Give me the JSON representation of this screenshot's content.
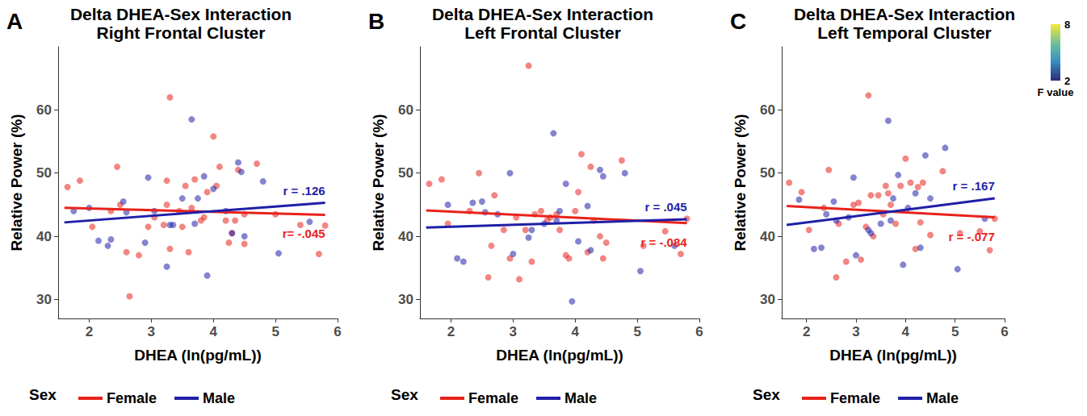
{
  "chart_data": [
    {
      "type": "scatter",
      "panel": "A",
      "title": "Delta DHEA-Sex Interaction",
      "subtitle": "Right Frontal Cluster",
      "x_label": "DHEA (ln(pg/mL))",
      "y_label": "Relative Power (%)",
      "xlim": [
        1.5,
        6
      ],
      "xticks": [
        2,
        3,
        4,
        5,
        6
      ],
      "ylim": [
        27,
        70
      ],
      "yticks": [
        30,
        40,
        50,
        60
      ],
      "grid": false,
      "legend": "bottom",
      "legend_title": "Sex",
      "series": [
        {
          "name": "Female",
          "color": "#e8221b",
          "marker": "circle",
          "x": [
            1.65,
            1.85,
            2.05,
            2.35,
            2.45,
            2.5,
            2.6,
            2.65,
            2.8,
            2.95,
            3.05,
            3.2,
            3.25,
            3.25,
            3.3,
            3.3,
            3.45,
            3.5,
            3.55,
            3.6,
            3.65,
            3.7,
            3.8,
            3.85,
            3.9,
            4.0,
            4.05,
            4.1,
            4.2,
            4.25,
            4.3,
            4.35,
            4.4,
            4.5,
            4.5,
            4.7,
            5.0,
            5.4,
            5.7,
            5.8
          ],
          "values": [
            47.8,
            48.8,
            41.5,
            44,
            51,
            45,
            37.5,
            30.5,
            37,
            41.5,
            43,
            41.8,
            45,
            48.8,
            62,
            38,
            44,
            41.5,
            48,
            37.5,
            44.5,
            49,
            42.5,
            43,
            47,
            55.8,
            48,
            51,
            42.5,
            39,
            40.5,
            42.5,
            50.5,
            38.8,
            43.5,
            51.5,
            43.5,
            41.8,
            37.2,
            41.7
          ],
          "fit": {
            "x": [
              1.6,
              5.8
            ],
            "y": [
              44.5,
              43.4
            ]
          },
          "r_label": "r= -.045"
        },
        {
          "name": "Male",
          "color": "#1f1fa8",
          "marker": "circle",
          "x": [
            1.75,
            2.0,
            2.15,
            2.3,
            2.35,
            2.55,
            2.6,
            2.9,
            2.95,
            3.05,
            3.25,
            3.3,
            3.35,
            3.5,
            3.65,
            3.7,
            3.75,
            3.85,
            3.9,
            4.0,
            4.2,
            4.3,
            4.4,
            4.45,
            4.5,
            4.8,
            5.05,
            5.55
          ],
          "values": [
            44,
            44.5,
            39.3,
            38.5,
            39.5,
            45.5,
            43.8,
            39,
            49.3,
            44,
            35.2,
            41.8,
            41.8,
            46,
            58.5,
            42,
            46,
            49.5,
            33.8,
            47.5,
            44,
            40.5,
            51.7,
            50.2,
            40,
            48.7,
            37.3,
            42.3
          ],
          "fit": {
            "x": [
              1.6,
              5.8
            ],
            "y": [
              42.2,
              45.3
            ]
          },
          "r_label": "r = .126"
        }
      ]
    },
    {
      "type": "scatter",
      "panel": "B",
      "title": "Delta DHEA-Sex Interaction",
      "subtitle": "Left Frontal Cluster",
      "x_label": "DHEA (ln(pg/mL))",
      "y_label": "Relative Power (%)",
      "xlim": [
        1.5,
        6
      ],
      "xticks": [
        2,
        3,
        4,
        5,
        6
      ],
      "ylim": [
        27,
        70
      ],
      "yticks": [
        30,
        40,
        50,
        60
      ],
      "grid": false,
      "legend": "bottom",
      "legend_title": "Sex",
      "series": [
        {
          "name": "Female",
          "color": "#e8221b",
          "marker": "circle",
          "x": [
            1.65,
            1.85,
            1.95,
            2.3,
            2.45,
            2.6,
            2.65,
            2.7,
            2.85,
            2.95,
            3.05,
            3.1,
            3.2,
            3.25,
            3.3,
            3.35,
            3.45,
            3.55,
            3.6,
            3.7,
            3.75,
            3.85,
            3.9,
            4.0,
            4.05,
            4.1,
            4.2,
            4.25,
            4.3,
            4.4,
            4.45,
            4.5,
            4.75,
            5.1,
            5.45,
            5.7,
            5.8
          ],
          "values": [
            48.3,
            49,
            42,
            44,
            50,
            33.5,
            38.5,
            46.5,
            41,
            36.5,
            43,
            33.2,
            41,
            67,
            36,
            43.5,
            44,
            42.5,
            43,
            43.5,
            41,
            37,
            36.5,
            44,
            47,
            53,
            37.5,
            51,
            42.5,
            40,
            36.5,
            39,
            52,
            38.5,
            40.8,
            37.2,
            42.8
          ],
          "fit": {
            "x": [
              1.6,
              5.8
            ],
            "y": [
              44.1,
              42.1
            ]
          },
          "r_label": "r = -.084"
        },
        {
          "name": "Male",
          "color": "#1f1fa8",
          "marker": "circle",
          "x": [
            1.95,
            2.1,
            2.2,
            2.35,
            2.5,
            2.55,
            2.75,
            2.95,
            3.0,
            3.25,
            3.3,
            3.5,
            3.65,
            3.7,
            3.75,
            3.85,
            3.95,
            4.05,
            4.2,
            4.25,
            4.4,
            4.45,
            4.8,
            5.05,
            5.6
          ],
          "values": [
            45,
            36.5,
            36,
            45.3,
            45.5,
            43.8,
            43.5,
            50,
            37.2,
            39.8,
            41,
            42,
            56.3,
            42.5,
            44,
            48.3,
            29.7,
            39.2,
            44.8,
            37.8,
            50.5,
            49.5,
            50,
            34.5,
            38.5
          ],
          "fit": {
            "x": [
              1.6,
              5.8
            ],
            "y": [
              41.4,
              42.7
            ]
          },
          "r_label": "r = .045"
        }
      ]
    },
    {
      "type": "scatter",
      "panel": "C",
      "title": "Delta DHEA-Sex Interaction",
      "subtitle": "Left Temporal Cluster",
      "x_label": "DHEA (ln(pg/mL))",
      "y_label": "Relative Power (%)",
      "xlim": [
        1.5,
        6
      ],
      "xticks": [
        2,
        3,
        4,
        5,
        6
      ],
      "ylim": [
        27,
        70
      ],
      "yticks": [
        30,
        40,
        50,
        60
      ],
      "grid": false,
      "legend": "bottom",
      "legend_title": "Sex",
      "colorbar": {
        "label": "F value",
        "range": [
          2,
          8
        ],
        "ticks": [
          2,
          8
        ]
      },
      "series": [
        {
          "name": "Female",
          "color": "#e8221b",
          "marker": "circle",
          "x": [
            1.65,
            1.9,
            2.05,
            2.35,
            2.45,
            2.6,
            2.65,
            2.8,
            2.95,
            3.05,
            3.1,
            3.2,
            3.25,
            3.3,
            3.35,
            3.45,
            3.55,
            3.6,
            3.65,
            3.7,
            3.8,
            3.9,
            4.0,
            4.1,
            4.2,
            4.25,
            4.3,
            4.35,
            4.5,
            4.75,
            5.1,
            5.5,
            5.7,
            5.8
          ],
          "values": [
            48.5,
            47,
            41,
            44.5,
            50.5,
            33.5,
            42,
            36,
            45,
            45.3,
            36.3,
            41.5,
            62.3,
            46.5,
            40,
            46.5,
            43.5,
            48,
            46.8,
            45,
            42,
            48,
            52.3,
            48.5,
            38,
            47.8,
            42.2,
            48.5,
            40.2,
            50.3,
            40.5,
            40.8,
            37.8,
            42.8
          ],
          "fit": {
            "x": [
              1.6,
              5.8
            ],
            "y": [
              44.8,
              43.0
            ]
          },
          "r_label": "r = -.077"
        },
        {
          "name": "Male",
          "color": "#1f1fa8",
          "marker": "circle",
          "x": [
            1.85,
            2.15,
            2.3,
            2.4,
            2.55,
            2.6,
            2.85,
            2.95,
            3.0,
            3.25,
            3.3,
            3.5,
            3.65,
            3.7,
            3.75,
            3.85,
            3.95,
            4.05,
            4.2,
            4.3,
            4.4,
            4.5,
            4.8,
            5.05,
            5.6
          ],
          "values": [
            45.8,
            38,
            38.2,
            43.5,
            45.5,
            42.5,
            43,
            49.3,
            37,
            41,
            40.5,
            42,
            58.3,
            42.5,
            46,
            49.7,
            35.5,
            44.5,
            46.8,
            38.2,
            52.8,
            46,
            54,
            34.8,
            42.8
          ],
          "fit": {
            "x": [
              1.6,
              5.8
            ],
            "y": [
              41.8,
              46.0
            ]
          },
          "r_label": "r = .167"
        }
      ]
    }
  ]
}
